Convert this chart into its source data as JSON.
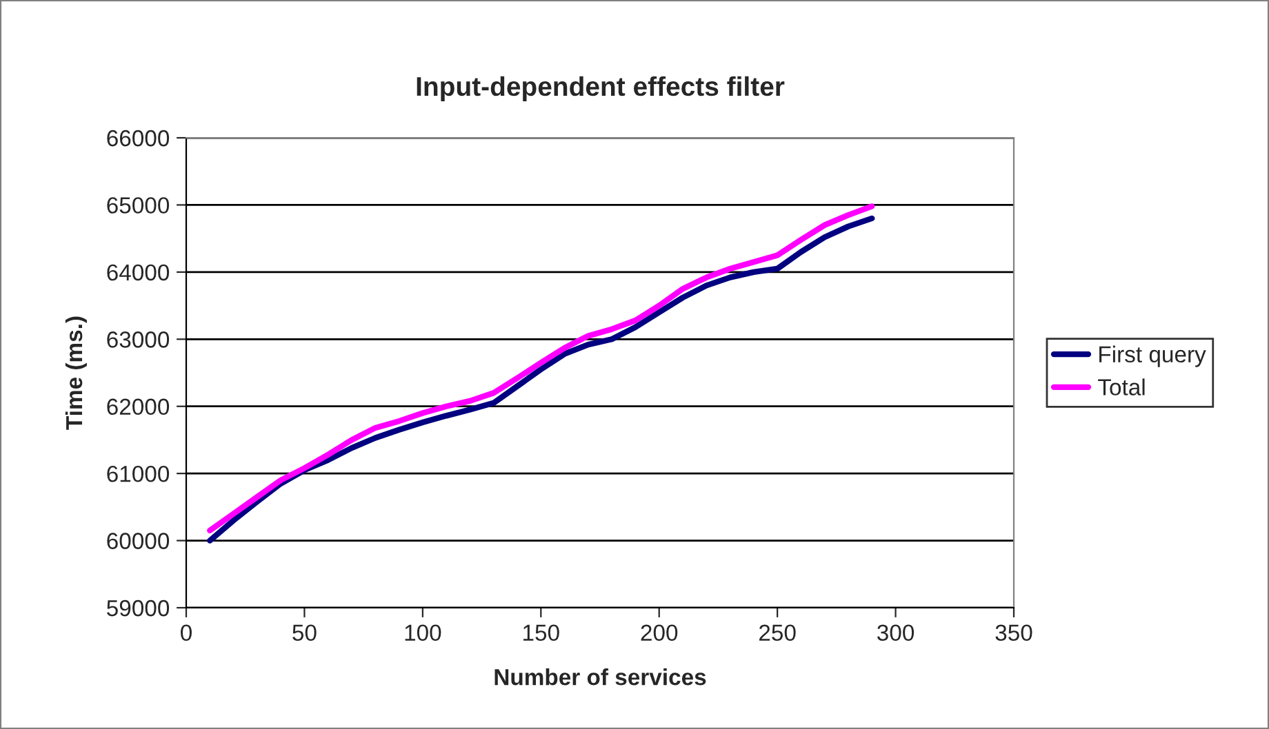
{
  "chart_data": {
    "type": "line",
    "title": "Input-dependent effects filter",
    "xlabel": "Number of services",
    "ylabel": "Time (ms.)",
    "x": [
      10,
      20,
      30,
      40,
      50,
      60,
      70,
      80,
      90,
      100,
      110,
      120,
      130,
      140,
      150,
      160,
      170,
      180,
      190,
      200,
      210,
      220,
      230,
      240,
      250,
      260,
      270,
      280,
      290
    ],
    "series": [
      {
        "name": "First query",
        "color": "#000080",
        "values": [
          60000,
          60300,
          60580,
          60850,
          61050,
          61200,
          61380,
          61530,
          61650,
          61760,
          61860,
          61950,
          62050,
          62300,
          62550,
          62780,
          62920,
          63000,
          63180,
          63400,
          63620,
          63800,
          63920,
          64000,
          64050,
          64300,
          64520,
          64680,
          64800
        ]
      },
      {
        "name": "Total",
        "color": "#ff00ff",
        "values": [
          60150,
          60400,
          60650,
          60900,
          61080,
          61280,
          61500,
          61680,
          61780,
          61900,
          62000,
          62080,
          62200,
          62420,
          62650,
          62870,
          63050,
          63150,
          63280,
          63500,
          63750,
          63920,
          64050,
          64150,
          64250,
          64480,
          64700,
          64850,
          64980
        ]
      }
    ],
    "xlim": [
      0,
      350
    ],
    "xticks": [
      0,
      50,
      100,
      150,
      200,
      250,
      300,
      350
    ],
    "ylim": [
      59000,
      66000
    ],
    "yticks": [
      59000,
      60000,
      61000,
      62000,
      63000,
      64000,
      65000,
      66000
    ],
    "grid": "y",
    "legend": "right",
    "marker": "none",
    "line_style": "solid"
  }
}
